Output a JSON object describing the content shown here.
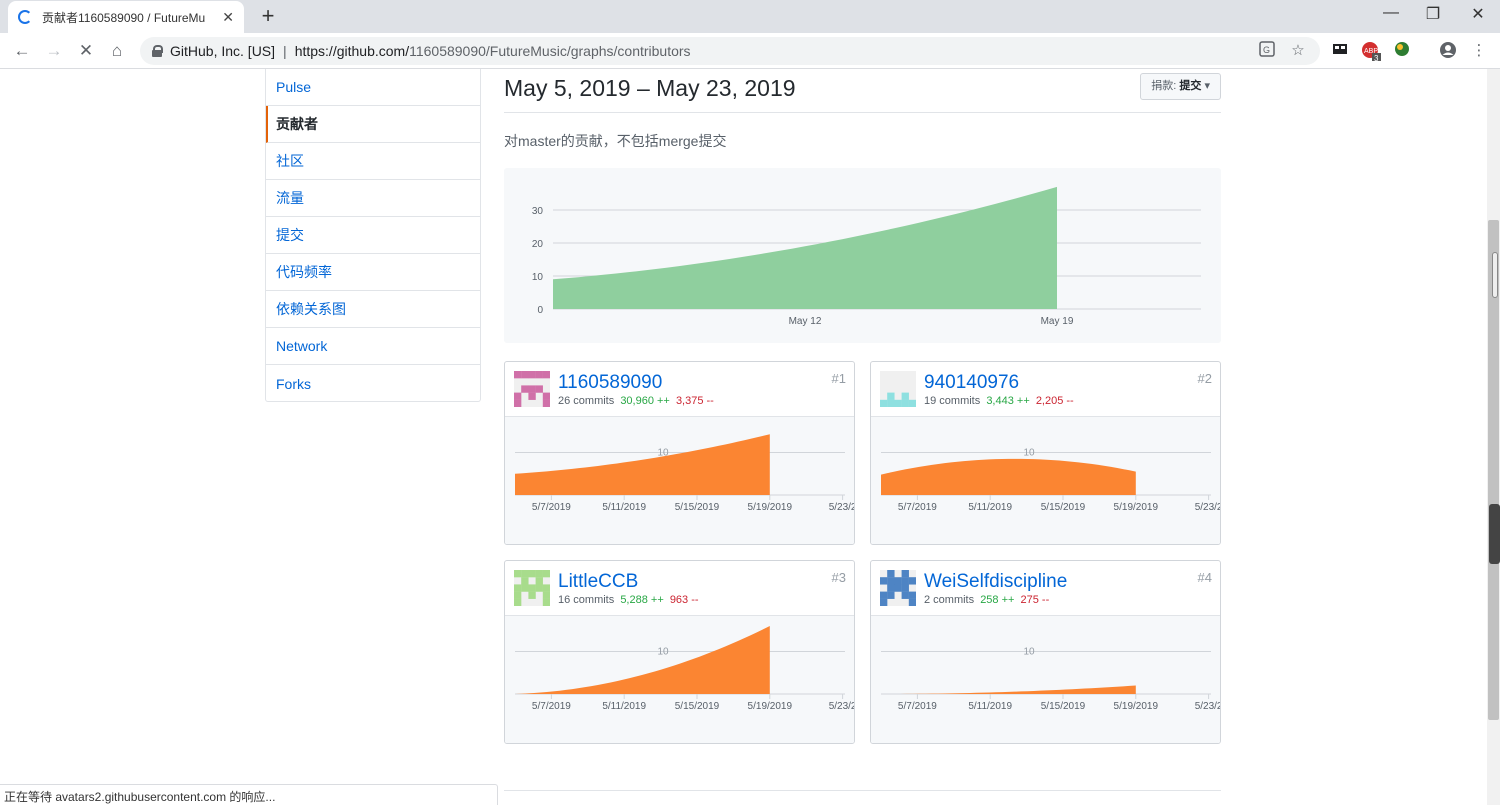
{
  "browser": {
    "tab_title": "贡献者1160589090 / FutureMu",
    "tab_close": "✕",
    "new_tab": "+",
    "url_host": "GitHub, Inc. [US]",
    "url_sep": "|",
    "url_prefix": "https://github.com/",
    "url_path": "1160589090/FutureMusic/graphs/contributors",
    "ext_badge": "3",
    "status": "正在等待 avatars2.githubusercontent.com 的响应..."
  },
  "sidebar": {
    "items": [
      {
        "label": "Pulse"
      },
      {
        "label": "贡献者"
      },
      {
        "label": "社区"
      },
      {
        "label": "流量"
      },
      {
        "label": "提交"
      },
      {
        "label": "代码频率"
      },
      {
        "label": "依赖关系图"
      },
      {
        "label": "Network"
      },
      {
        "label": "Forks"
      }
    ]
  },
  "header": {
    "date_range": "May 5, 2019 – May 23, 2019",
    "filter_label": "捐款:",
    "filter_value": "提交",
    "subtitle": "对master的贡献，不包括merge提交"
  },
  "colors": {
    "main_area": "#8fcf9e",
    "contributor_area": "#fb8532",
    "link": "#0366d6",
    "additions": "#28a745",
    "deletions": "#cb2431"
  },
  "chart_data": [
    {
      "type": "area",
      "x": [
        "2019-05-05",
        "2019-05-12",
        "2019-05-19"
      ],
      "x_tick_labels": [
        "May 12",
        "May 19"
      ],
      "y": [
        9,
        19,
        37
      ],
      "yticks": [
        "0",
        "10",
        "20",
        "30"
      ],
      "ylim": [
        0,
        40
      ],
      "grid": true
    },
    {
      "type": "area",
      "contributor": "1160589090",
      "x": [
        "2019-05-05",
        "2019-05-12",
        "2019-05-19"
      ],
      "y": [
        5,
        8.3,
        14.3
      ],
      "yticks": [
        "10"
      ],
      "ylim": [
        0,
        16
      ],
      "x_tick_labels": [
        "5/7/2019",
        "5/11/2019",
        "5/15/2019",
        "5/19/2019",
        "5/23/2"
      ]
    },
    {
      "type": "area",
      "contributor": "940140976",
      "x": [
        "2019-05-05",
        "2019-05-12",
        "2019-05-19"
      ],
      "y": [
        4.8,
        8.5,
        5.5
      ],
      "yticks": [
        "10"
      ],
      "ylim": [
        0,
        16
      ],
      "x_tick_labels": [
        "5/7/2019",
        "5/11/2019",
        "5/15/2019",
        "5/19/2019",
        "5/23/2"
      ]
    },
    {
      "type": "area",
      "contributor": "LittleCCB",
      "x": [
        "2019-05-05",
        "2019-05-12",
        "2019-05-19"
      ],
      "y": [
        0,
        4.5,
        16
      ],
      "yticks": [
        "10"
      ],
      "ylim": [
        0,
        16
      ],
      "x_tick_labels": [
        "5/7/2019",
        "5/11/2019",
        "5/15/2019",
        "5/19/2019",
        "5/23/2"
      ]
    },
    {
      "type": "area",
      "contributor": "WeiSelfdiscipline",
      "x": [
        "2019-05-05",
        "2019-05-12",
        "2019-05-19"
      ],
      "y": [
        0,
        0.5,
        2
      ],
      "yticks": [
        "10"
      ],
      "ylim": [
        0,
        16
      ],
      "x_tick_labels": [
        "5/7/2019",
        "5/11/2019",
        "5/15/2019",
        "5/19/2019",
        "5/23/2"
      ]
    }
  ],
  "contributors": [
    {
      "name": "1160589090",
      "commits": "26 commits",
      "additions": "30,960 ++",
      "deletions": "3,375 --",
      "rank": "#1",
      "avatar_color": "#d070a8"
    },
    {
      "name": "940140976",
      "commits": "19 commits",
      "additions": "3,443 ++",
      "deletions": "2,205 --",
      "rank": "#2",
      "avatar_color": "#8ee0e0"
    },
    {
      "name": "LittleCCB",
      "commits": "16 commits",
      "additions": "5,288 ++",
      "deletions": "963 --",
      "rank": "#3",
      "avatar_color": "#a8dc8c"
    },
    {
      "name": "WeiSelfdiscipline",
      "commits": "2 commits",
      "additions": "258 ++",
      "deletions": "275 --",
      "rank": "#4",
      "avatar_color": "#4e84c4"
    }
  ]
}
